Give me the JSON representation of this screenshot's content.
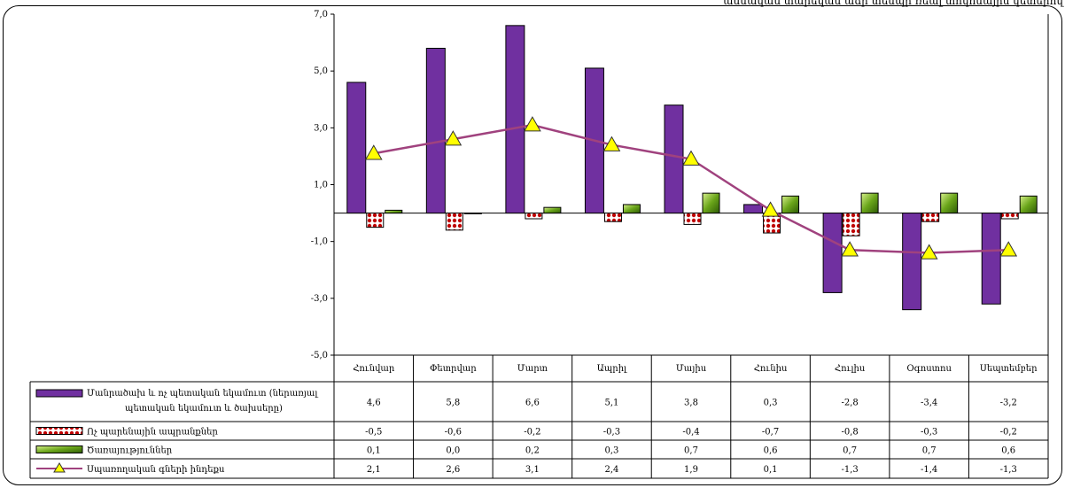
{
  "header_note": "ամսական տարեկան աճի տեմպի ռեալ տոկոսային կետերով",
  "chart_data": {
    "type": "bar",
    "title": "",
    "xlabel": "",
    "ylabel": "",
    "ylim": [
      -5.0,
      7.0
    ],
    "yticks": [
      "7,0",
      "5,0",
      "3,0",
      "1,0",
      "-1,0",
      "-3,0",
      "-5,0"
    ],
    "ytick_values": [
      7,
      5,
      3,
      1,
      -1,
      -3,
      -5
    ],
    "grid": false,
    "legend": "table-left",
    "categories": [
      "Հունվար",
      "Փետրվար",
      "Մարտ",
      "Ապրիլ",
      "Մայիս",
      "Հունիս",
      "Հուլիս",
      "Օգոստոս",
      "Սեպտեմբեր"
    ],
    "series": [
      {
        "name": "Մանրածախ և ոչ պետական եկամուտ (ներառյալ պետական եկամուտ և ծախսերը)",
        "kind": "bar",
        "color": "#7030a0",
        "values": [
          4.6,
          5.8,
          6.6,
          5.1,
          3.8,
          0.3,
          -2.8,
          -3.4,
          -3.2
        ],
        "labels": [
          "4,6",
          "5,8",
          "6,6",
          "5,1",
          "3,8",
          "0,3",
          "-2,8",
          "-3,4",
          "-3,2"
        ]
      },
      {
        "name": "Ոչ պարենային ապրանքներ",
        "kind": "bar",
        "color": "#c00000",
        "values": [
          -0.5,
          -0.6,
          -0.2,
          -0.3,
          -0.4,
          -0.7,
          -0.8,
          -0.3,
          -0.2
        ],
        "labels": [
          "-0,5",
          "-0,6",
          "-0,2",
          "-0,3",
          "-0,4",
          "-0,7",
          "-0,8",
          "-0,3",
          "-0,2"
        ]
      },
      {
        "name": "Ծառայություններ",
        "kind": "bar",
        "color": "#4f8a10",
        "values": [
          0.1,
          0.0,
          0.2,
          0.3,
          0.7,
          0.6,
          0.7,
          0.7,
          0.6
        ],
        "labels": [
          "0,1",
          "0,0",
          "0,2",
          "0,3",
          "0,7",
          "0,6",
          "0,7",
          "0,7",
          "0,6"
        ]
      },
      {
        "name": "Սպառողական գների ինդեքս",
        "kind": "line",
        "color": "#a0427e",
        "marker_color": "#ffff00",
        "values": [
          2.1,
          2.6,
          3.1,
          2.4,
          1.9,
          0.1,
          -1.3,
          -1.4,
          -1.3
        ],
        "labels": [
          "2,1",
          "2,6",
          "3,1",
          "2,4",
          "1,9",
          "0,1",
          "-1,3",
          "-1,4",
          "-1,3"
        ]
      }
    ]
  }
}
